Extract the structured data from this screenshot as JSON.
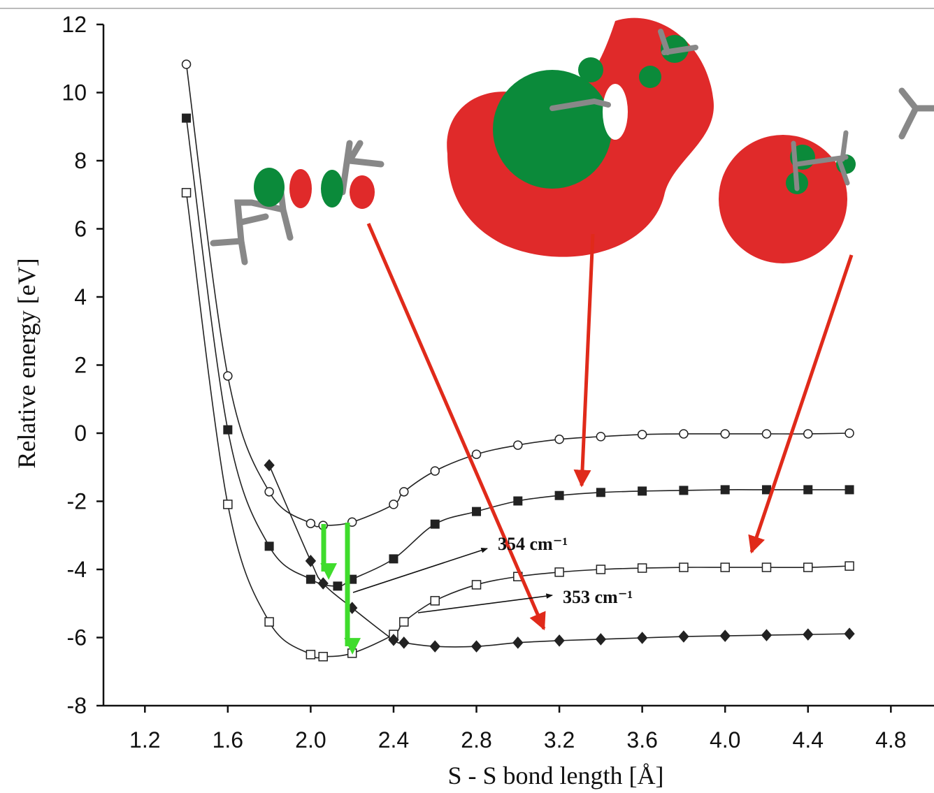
{
  "chart_data": {
    "type": "line",
    "xlabel": "S - S  bond length  [Å]",
    "ylabel": "Relative energy  [eV]",
    "xlim": [
      1.0,
      5.0
    ],
    "ylim": [
      -8,
      12
    ],
    "xticks": [
      1.2,
      1.6,
      {
        "value": 2,
        "label": "2.0"
      },
      2.4,
      2.8,
      3.2,
      3.6,
      {
        "value": 4,
        "label": "4.0"
      },
      4.4,
      4.8
    ],
    "yticks": [
      -8,
      -6,
      -4,
      -2,
      0,
      2,
      4,
      6,
      8,
      10,
      12
    ],
    "series": [
      {
        "marker": "circle-open",
        "color": "#222222",
        "x": [
          1.4,
          1.6,
          1.8,
          2.0,
          2.06,
          2.2,
          2.4,
          2.45,
          2.6,
          2.8,
          3.0,
          3.2,
          3.4,
          3.6,
          3.8,
          4.0,
          4.2,
          4.4,
          4.6
        ],
        "values": [
          10.83,
          1.68,
          -1.72,
          -2.65,
          -2.71,
          -2.61,
          -2.09,
          -1.72,
          -1.11,
          -0.62,
          -0.35,
          -0.18,
          -0.1,
          -0.04,
          -0.02,
          -0.02,
          -0.02,
          -0.02,
          0.0
        ]
      },
      {
        "marker": "square-filled",
        "color": "#222222",
        "x": [
          1.4,
          1.6,
          1.8,
          2.0,
          2.13,
          2.2,
          2.4,
          2.6,
          2.8,
          3.0,
          3.2,
          3.4,
          3.6,
          3.8,
          4.0,
          4.2,
          4.4,
          4.6
        ],
        "values": [
          9.25,
          0.1,
          -3.32,
          -4.29,
          -4.49,
          -4.29,
          -3.69,
          -2.67,
          -2.3,
          -1.99,
          -1.83,
          -1.74,
          -1.7,
          -1.68,
          -1.66,
          -1.66,
          -1.66,
          -1.66
        ]
      },
      {
        "marker": "square-open",
        "color": "#222222",
        "x": [
          1.4,
          1.6,
          1.8,
          2.0,
          2.06,
          2.2,
          2.4,
          2.45,
          2.6,
          2.8,
          3.0,
          3.2,
          3.4,
          3.6,
          3.8,
          4.0,
          4.2,
          4.4,
          4.6
        ],
        "values": [
          7.06,
          -2.09,
          -5.54,
          -6.5,
          -6.56,
          -6.46,
          -5.91,
          -5.54,
          -4.92,
          -4.45,
          -4.21,
          -4.08,
          -4.0,
          -3.96,
          -3.94,
          -3.94,
          -3.94,
          -3.94,
          -3.9
        ]
      },
      {
        "marker": "diamond-filled",
        "color": "#222222",
        "x": [
          1.8,
          2.0,
          2.06,
          2.2,
          2.4,
          2.45,
          2.6,
          2.8,
          3.0,
          3.2,
          3.4,
          3.6,
          3.8,
          4.0,
          4.2,
          4.4,
          4.6
        ],
        "values": [
          -0.94,
          -3.75,
          -4.41,
          -5.13,
          -6.07,
          -6.15,
          -6.26,
          -6.26,
          -6.15,
          -6.09,
          -6.05,
          -6.01,
          -5.97,
          -5.95,
          -5.93,
          -5.91,
          -5.89
        ]
      }
    ],
    "annotations": [
      "354 cm⁻¹",
      "353 cm⁻¹"
    ]
  }
}
